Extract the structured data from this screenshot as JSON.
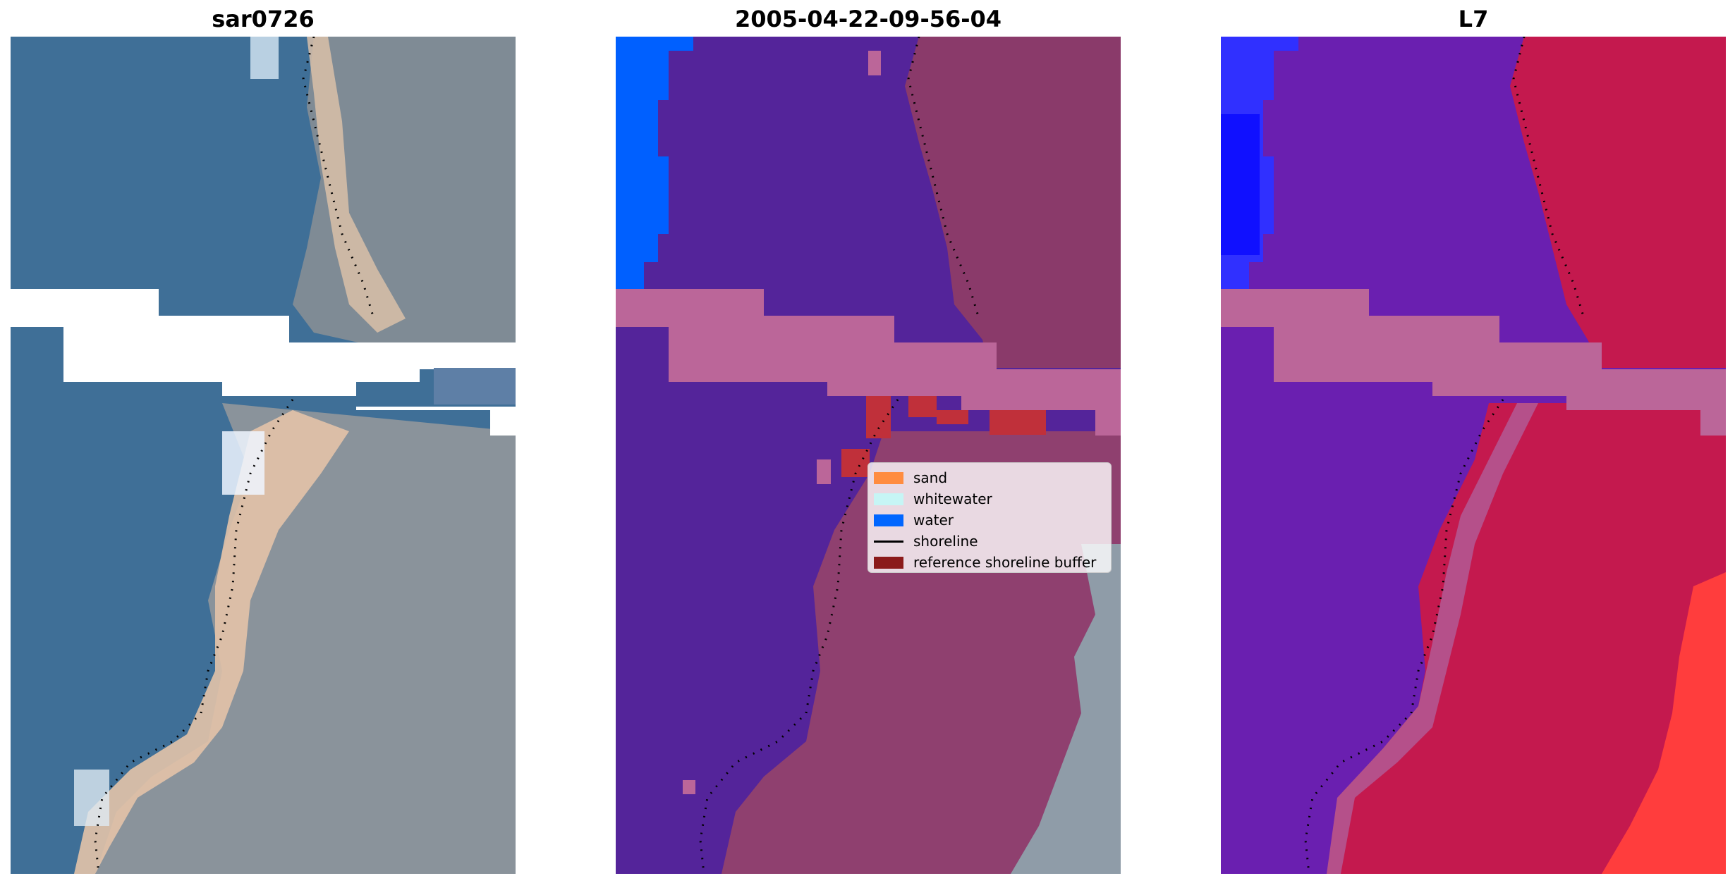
{
  "panels": [
    {
      "title": "sar0726"
    },
    {
      "title": "2005-04-22-09-56-04"
    },
    {
      "title": "L7"
    }
  ],
  "legend": {
    "items": [
      {
        "label": "sand",
        "color": "#ff8c40"
      },
      {
        "label": "whitewater",
        "color": "#c6f5f5"
      },
      {
        "label": "water",
        "color": "#0066ff"
      },
      {
        "label": "shoreline",
        "color": "#000000"
      },
      {
        "label": "reference shoreline buffer",
        "color": "#8b1a1a"
      }
    ]
  },
  "colors": {
    "rgb_water": "#3f6f97",
    "rgb_land": "#7f8b95",
    "rgb_beach": "#e3c3a8",
    "class_water": "#54249a",
    "class_land": "#8a3a6a",
    "nodata_band": "#bb6699",
    "ndwi_water": "#6a1fb0",
    "ndwi_land": "#c4194e",
    "ndwi_land_bright": "#ff3d3d"
  }
}
